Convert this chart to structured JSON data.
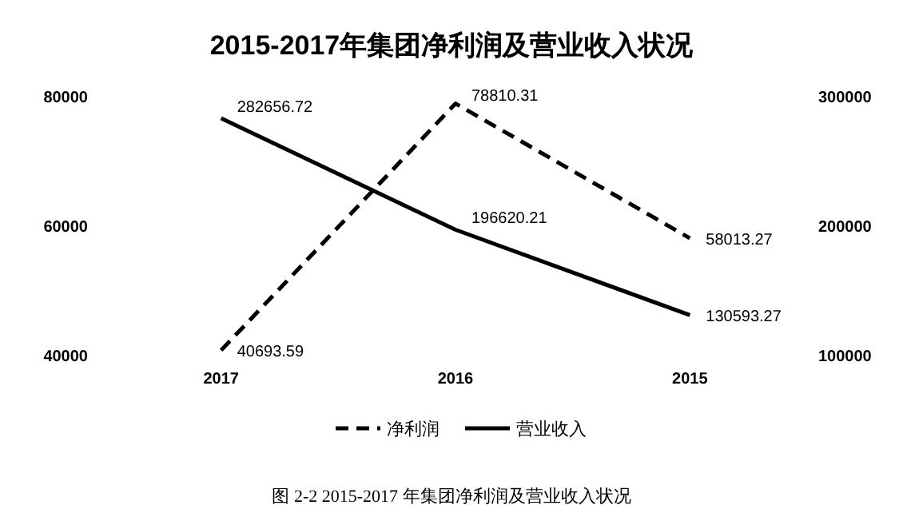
{
  "chart_data": {
    "type": "line",
    "title": "2015-2017年集团净利润及营业收入状况",
    "categories": [
      "2017",
      "2016",
      "2015"
    ],
    "series": [
      {
        "name": "净利润",
        "color": "#000000",
        "line_style": "dashed",
        "values": [
          40693.59,
          78810.31,
          58013.27
        ]
      },
      {
        "name": "营业收入",
        "color": "#000000",
        "line_style": "solid",
        "axis": "y2",
        "values": [
          282656.72,
          196620.21,
          130593.27
        ]
      }
    ],
    "ylim": [
      40000,
      80000
    ],
    "yticks": [
      40000,
      60000,
      80000
    ],
    "y2lim": [
      100000,
      300000
    ],
    "y2ticks": [
      100000,
      200000,
      300000
    ],
    "data_labels": true,
    "grid": false,
    "legend": "bottom",
    "annotations": [
      "图 2-2  2015-2017 年集团净利润及营业收入状况"
    ]
  }
}
